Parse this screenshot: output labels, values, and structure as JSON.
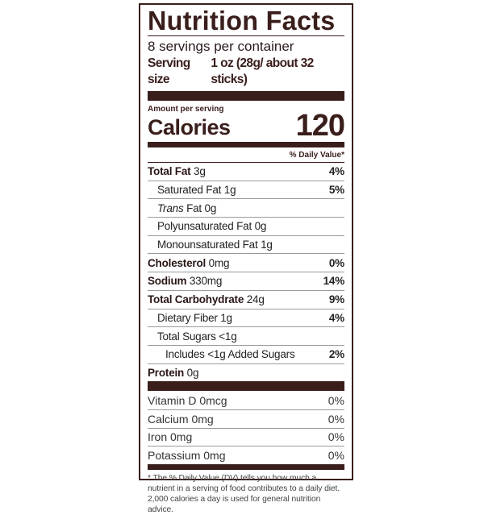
{
  "title": "Nutrition Facts",
  "servings_per_container": "8 servings per container",
  "serving_size_label": "Serving size",
  "serving_size_value": "1 oz (28g/ about 32 sticks)",
  "amount_per_serving": "Amount per serving",
  "calories_label": "Calories",
  "calories_value": "120",
  "daily_value_header": "% Daily Value*",
  "nutrients": [
    {
      "name": "Total Fat",
      "amount": "3g",
      "dv": "4%",
      "bold": true,
      "indent": 0
    },
    {
      "name": "Saturated Fat",
      "amount": "1g",
      "dv": "5%",
      "bold": false,
      "indent": 1
    },
    {
      "name": "Trans",
      "name_suffix": "Fat",
      "amount": "0g",
      "dv": "",
      "bold": false,
      "indent": 1,
      "italic_prefix": true
    },
    {
      "name": "Polyunsaturated Fat",
      "amount": "0g",
      "dv": "",
      "bold": false,
      "indent": 1
    },
    {
      "name": "Monounsaturated Fat",
      "amount": "1g",
      "dv": "",
      "bold": false,
      "indent": 1
    },
    {
      "name": "Cholesterol",
      "amount": "0mg",
      "dv": "0%",
      "bold": true,
      "indent": 0
    },
    {
      "name": "Sodium",
      "amount": "330mg",
      "dv": "14%",
      "bold": true,
      "indent": 0
    },
    {
      "name": "Total Carbohydrate",
      "amount": "24g",
      "dv": "9%",
      "bold": true,
      "indent": 0
    },
    {
      "name": "Dietary Fiber",
      "amount": "1g",
      "dv": "4%",
      "bold": false,
      "indent": 1
    },
    {
      "name": "Total Sugars",
      "amount": "<1g",
      "dv": "",
      "bold": false,
      "indent": 1
    },
    {
      "name": "Includes <1g Added Sugars",
      "amount": "",
      "dv": "2%",
      "bold": false,
      "indent": 2
    },
    {
      "name": "Protein",
      "amount": "0g",
      "dv": "",
      "bold": true,
      "indent": 0
    }
  ],
  "vitamins": [
    {
      "name": "Vitamin D 0mcg",
      "dv": "0%"
    },
    {
      "name": "Calcium 0mg",
      "dv": "0%"
    },
    {
      "name": "Iron 0mg",
      "dv": "0%"
    },
    {
      "name": "Potassium 0mg",
      "dv": "0%"
    }
  ],
  "footnote_marker": "*",
  "footnote": "The % Daily Value (DV) tells you how much a nutrient in a serving of food contributes to a daily diet. 2,000 calories a day is used for general nutrition advice.",
  "colors": {
    "label_brown": "#3a1e1c"
  }
}
